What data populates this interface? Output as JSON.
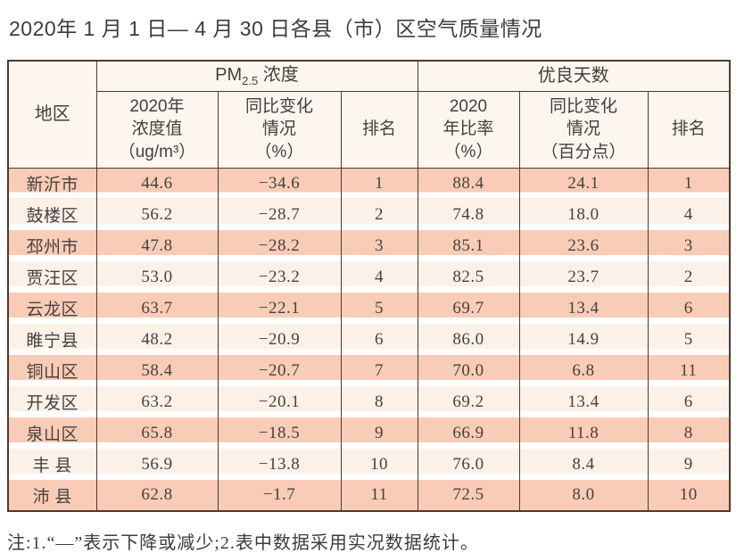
{
  "page": {
    "title": "2020年 1 月 1 日— 4 月 30 日各县（市）区空气质量情况",
    "note": "注:1.“—”表示下降或减少;2.表中数据采用实况数据统计。"
  },
  "colors": {
    "row_salmon": "#f8ccb7",
    "row_light": "#fcf1e9",
    "header_bg": "#fdf6ee",
    "grid_line": "#4e3a30",
    "text": "#48413e"
  },
  "table": {
    "header": {
      "region": "地区",
      "pm_group": {
        "prefix": "PM",
        "subscript": "2.5",
        "suffix": " 浓度"
      },
      "good_days_group": "优良天数",
      "pm_value": "2020年\n浓度值\n（ug/m³）",
      "pm_change": "同比变化\n情况\n（%）",
      "pm_rank": "排名",
      "rate_value": "2020\n年比率\n（%）",
      "rate_change": "同比变化\n情况\n（百分点）",
      "rate_rank": "排名"
    },
    "rows": [
      [
        "新沂市",
        "44.6",
        "−34.6",
        "1",
        "88.4",
        "24.1",
        "1"
      ],
      [
        "鼓楼区",
        "56.2",
        "−28.7",
        "2",
        "74.8",
        "18.0",
        "4"
      ],
      [
        "邳州市",
        "47.8",
        "−28.2",
        "3",
        "85.1",
        "23.6",
        "3"
      ],
      [
        "贾汪区",
        "53.0",
        "−23.2",
        "4",
        "82.5",
        "23.7",
        "2"
      ],
      [
        "云龙区",
        "63.7",
        "−22.1",
        "5",
        "69.7",
        "13.4",
        "6"
      ],
      [
        "睢宁县",
        "48.2",
        "−20.9",
        "6",
        "86.0",
        "14.9",
        "5"
      ],
      [
        "铜山区",
        "58.4",
        "−20.7",
        "7",
        "70.0",
        "6.8",
        "11"
      ],
      [
        "开发区",
        "63.2",
        "−20.1",
        "8",
        "69.2",
        "13.4",
        "6"
      ],
      [
        "泉山区",
        "65.8",
        "−18.5",
        "9",
        "66.9",
        "11.8",
        "8"
      ],
      [
        "丰 县",
        "56.9",
        "−13.8",
        "10",
        "76.0",
        "8.4",
        "9"
      ],
      [
        "沛 县",
        "62.8",
        "−1.7",
        "11",
        "72.5",
        "8.0",
        "10"
      ]
    ]
  }
}
